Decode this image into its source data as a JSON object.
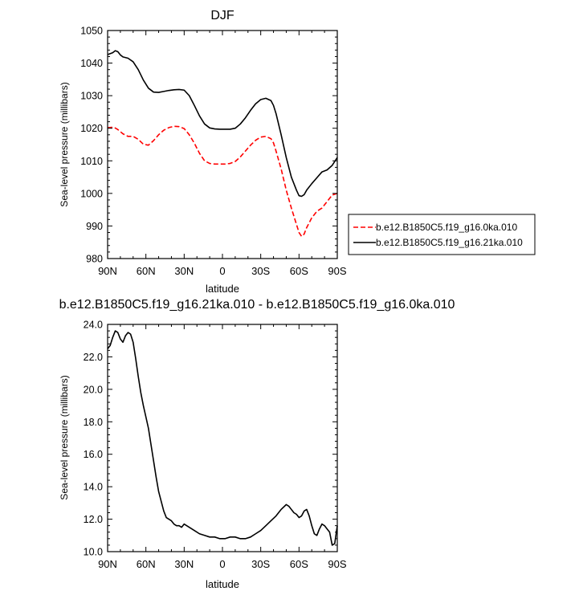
{
  "chart_data": [
    {
      "type": "line",
      "title": "DJF",
      "xlabel": "latitude",
      "ylabel": "Sea-level pressure (millibars)",
      "xlim": [
        90,
        -90
      ],
      "ylim": [
        980,
        1050
      ],
      "x_ticks": [
        90,
        60,
        30,
        0,
        -30,
        -60,
        -90
      ],
      "x_tick_labels": [
        "90N",
        "60N",
        "30N",
        "0",
        "30S",
        "60S",
        "90S"
      ],
      "y_ticks": [
        980,
        990,
        1000,
        1010,
        1020,
        1030,
        1040,
        1050
      ],
      "y_tick_labels": [
        "980",
        "990",
        "1000",
        "1010",
        "1020",
        "1030",
        "1040",
        "1050"
      ],
      "legend_position": "right",
      "series": [
        {
          "name": "b.e12.B1850C5.f19_g16.0ka.010",
          "color": "#ff0000",
          "dash": "dashed",
          "x": [
            90,
            85,
            82,
            78,
            74,
            70,
            66,
            62,
            58,
            54,
            50,
            46,
            42,
            38,
            34,
            30,
            26,
            22,
            18,
            14,
            10,
            6,
            2,
            -2,
            -6,
            -10,
            -14,
            -18,
            -22,
            -26,
            -30,
            -34,
            -38,
            -40,
            -42,
            -46,
            -50,
            -54,
            -58,
            -60,
            -62,
            -64,
            -66,
            -70,
            -74,
            -78,
            -82,
            -86,
            -90
          ],
          "y": [
            1020.2,
            1020.3,
            1019.6,
            1018.3,
            1017.5,
            1017.5,
            1016.6,
            1015.1,
            1014.8,
            1016.2,
            1018.0,
            1019.4,
            1020.2,
            1020.6,
            1020.5,
            1019.9,
            1018.0,
            1015.4,
            1012.3,
            1010.0,
            1009.2,
            1009.0,
            1009.0,
            1009.0,
            1009.2,
            1009.8,
            1011.2,
            1013.0,
            1014.8,
            1016.3,
            1017.3,
            1017.5,
            1016.8,
            1015.5,
            1013.0,
            1007.5,
            1001.0,
            995.5,
            990.5,
            988.0,
            986.8,
            987.5,
            989.5,
            992.5,
            994.5,
            995.5,
            997.5,
            999.5,
            1000.0
          ]
        },
        {
          "name": "b.e12.B1850C5.f19_g16.21ka.010",
          "color": "#000000",
          "dash": "solid",
          "x": [
            90,
            86,
            84,
            82,
            80,
            78,
            74,
            70,
            66,
            62,
            58,
            54,
            50,
            46,
            42,
            38,
            34,
            30,
            26,
            22,
            18,
            14,
            10,
            6,
            2,
            -2,
            -6,
            -10,
            -14,
            -18,
            -22,
            -26,
            -30,
            -34,
            -38,
            -40,
            -42,
            -46,
            -50,
            -54,
            -58,
            -60,
            -62,
            -64,
            -66,
            -70,
            -74,
            -78,
            -82,
            -86,
            -90
          ],
          "y": [
            1042.6,
            1043.2,
            1043.8,
            1043.5,
            1042.5,
            1041.9,
            1041.5,
            1040.4,
            1038.0,
            1034.8,
            1032.3,
            1031.1,
            1031.0,
            1031.3,
            1031.6,
            1031.8,
            1031.9,
            1031.7,
            1030.0,
            1027.0,
            1023.8,
            1021.3,
            1020.1,
            1019.8,
            1019.7,
            1019.7,
            1019.7,
            1020.0,
            1021.3,
            1023.2,
            1025.5,
            1027.5,
            1028.8,
            1029.2,
            1028.5,
            1027.0,
            1024.5,
            1018.0,
            1011.0,
            1005.0,
            1001.0,
            999.3,
            999.1,
            999.6,
            1001.0,
            1003.0,
            1004.8,
            1006.6,
            1007.2,
            1008.6,
            1011.0
          ]
        }
      ]
    },
    {
      "type": "line",
      "title": "b.e12.B1850C5.f19_g16.21ka.010 - b.e12.B1850C5.f19_g16.0ka.010",
      "xlabel": "latitude",
      "ylabel": "Sea-level pressure (millibars)",
      "xlim": [
        90,
        -90
      ],
      "ylim": [
        10,
        24
      ],
      "x_ticks": [
        90,
        60,
        30,
        0,
        -30,
        -60,
        -90
      ],
      "x_tick_labels": [
        "90N",
        "60N",
        "30N",
        "0",
        "30S",
        "60S",
        "90S"
      ],
      "y_ticks": [
        10,
        12,
        14,
        16,
        18,
        20,
        22,
        24
      ],
      "y_tick_labels": [
        "10.0",
        "12.0",
        "14.0",
        "16.0",
        "18.0",
        "20.0",
        "22.0",
        "24.0"
      ],
      "series": [
        {
          "color": "#000000",
          "dash": "solid",
          "x": [
            90,
            88,
            86,
            84,
            82,
            80,
            78,
            76,
            74,
            72,
            70,
            68,
            66,
            64,
            62,
            60,
            58,
            56,
            54,
            52,
            50,
            48,
            46,
            44,
            42,
            40,
            38,
            36,
            34,
            32,
            30,
            28,
            26,
            22,
            18,
            14,
            10,
            6,
            2,
            -2,
            -6,
            -10,
            -14,
            -18,
            -22,
            -26,
            -30,
            -34,
            -38,
            -42,
            -46,
            -50,
            -52,
            -54,
            -56,
            -58,
            -60,
            -62,
            -64,
            -66,
            -68,
            -70,
            -72,
            -74,
            -76,
            -78,
            -80,
            -82,
            -84,
            -86,
            -88,
            -90
          ],
          "y": [
            22.5,
            22.7,
            23.2,
            23.6,
            23.5,
            23.1,
            22.9,
            23.3,
            23.5,
            23.4,
            22.9,
            21.9,
            20.8,
            19.8,
            19.0,
            18.3,
            17.6,
            16.6,
            15.6,
            14.6,
            13.7,
            13.1,
            12.5,
            12.1,
            12.0,
            11.9,
            11.7,
            11.6,
            11.6,
            11.5,
            11.7,
            11.6,
            11.5,
            11.3,
            11.1,
            11.0,
            10.9,
            10.9,
            10.8,
            10.8,
            10.9,
            10.9,
            10.8,
            10.8,
            10.9,
            11.1,
            11.3,
            11.6,
            11.9,
            12.2,
            12.6,
            12.9,
            12.8,
            12.6,
            12.4,
            12.3,
            12.1,
            12.2,
            12.5,
            12.6,
            12.2,
            11.6,
            11.1,
            11.0,
            11.4,
            11.7,
            11.6,
            11.4,
            11.2,
            10.4,
            10.5,
            11.6
          ]
        }
      ]
    }
  ]
}
